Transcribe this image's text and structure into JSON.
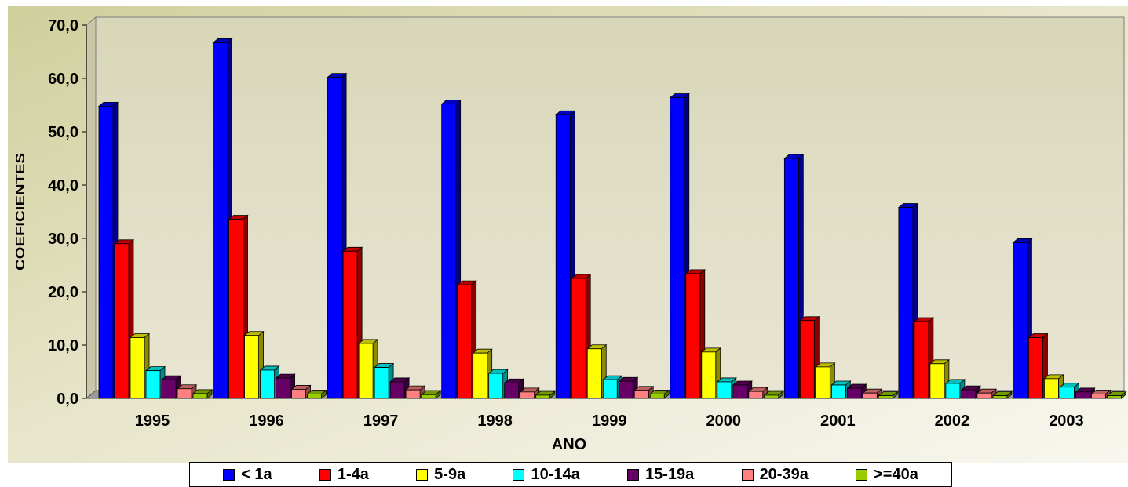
{
  "chart_data": {
    "type": "bar",
    "title": "",
    "xlabel": "ANO",
    "ylabel": "COEFICIENTES",
    "ylim": [
      0,
      70
    ],
    "y_ticks": [
      "0,0",
      "10,0",
      "20,0",
      "30,0",
      "40,0",
      "50,0",
      "60,0",
      "70,0"
    ],
    "categories": [
      "1995",
      "1996",
      "1997",
      "1998",
      "1999",
      "2000",
      "2001",
      "2002",
      "2003"
    ],
    "series": [
      {
        "name": "< 1a",
        "color": "#0000FF",
        "values": [
          54.8,
          66.7,
          60.2,
          55.2,
          53.2,
          56.4,
          45.0,
          35.8,
          29.2
        ]
      },
      {
        "name": "1-4a",
        "color": "#FF0000",
        "values": [
          29.0,
          33.6,
          27.6,
          21.3,
          22.5,
          23.4,
          14.6,
          14.4,
          11.4
        ]
      },
      {
        "name": "5-9a",
        "color": "#FFFF00",
        "values": [
          11.4,
          11.8,
          10.3,
          8.5,
          9.3,
          8.7,
          5.9,
          6.5,
          3.7
        ]
      },
      {
        "name": "10-14a",
        "color": "#00FFFF",
        "values": [
          5.2,
          5.3,
          5.8,
          4.7,
          3.5,
          3.1,
          2.5,
          2.8,
          2.1
        ]
      },
      {
        "name": "15-19a",
        "color": "#660066",
        "values": [
          3.5,
          3.8,
          3.1,
          2.9,
          3.2,
          2.5,
          1.9,
          1.6,
          1.2
        ]
      },
      {
        "name": "20-39a",
        "color": "#FF8080",
        "values": [
          1.8,
          1.7,
          1.6,
          1.2,
          1.5,
          1.3,
          1.0,
          1.0,
          0.8
        ]
      },
      {
        "name": ">=40a",
        "color": "#99CC00",
        "values": [
          0.9,
          0.8,
          0.7,
          0.6,
          0.8,
          0.6,
          0.5,
          0.5,
          0.5
        ]
      }
    ],
    "grid": false,
    "legend_position": "bottom",
    "depth_effect": "3d"
  }
}
